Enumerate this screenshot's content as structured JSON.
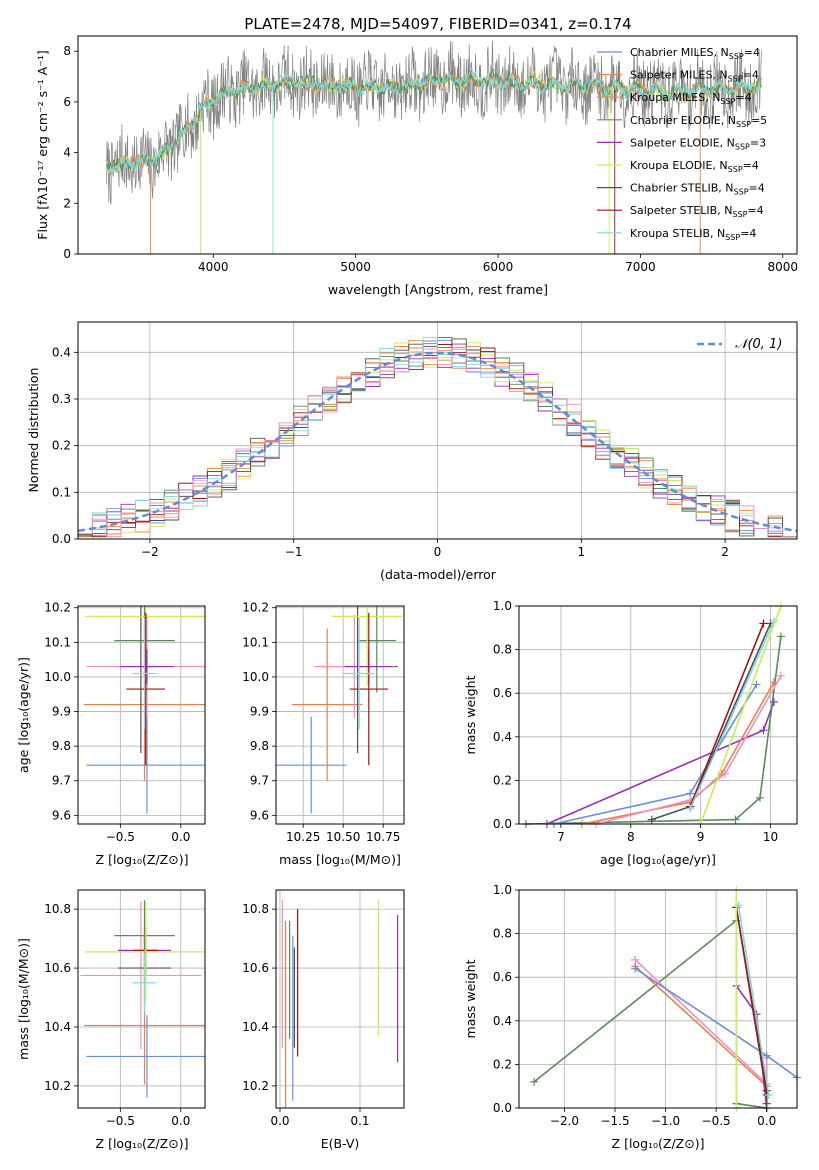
{
  "colors": {
    "Chabrier MILES": "#6a8fd8",
    "Salpeter MILES": "#e6824f",
    "Kroupa MILES": "#ef8a38",
    "Chabrier ELODIE": "#5b8a5b",
    "Salpeter ELODIE": "#9b30b4",
    "Kroupa ELODIE": "#c8ec5a",
    "Chabrier STELIB": "#505050",
    "Salpeter STELIB": "#a01414",
    "Kroupa STELIB": "#80d8e0",
    "pink": "#f090c0",
    "data": "#808080",
    "normal": "#5f8cd9"
  },
  "chart_data": [
    {
      "id": "spectrum",
      "type": "line",
      "title": "PLATE=2478, MJD=54097, FIBERID=0341, z=0.174",
      "xlabel": "wavelength [Angstrom, rest frame]",
      "ylabel": "Flux [fλ10⁻¹⁷ erg cm⁻² s⁻¹ A⁻¹]",
      "xlim": [
        3050,
        8100
      ],
      "ylim": [
        0,
        8.6
      ],
      "xticks": [
        "4000",
        "5000",
        "6000",
        "7000",
        "8000"
      ],
      "yticks": [
        "0",
        "2",
        "4",
        "6",
        "8"
      ],
      "continuum_x": [
        3250,
        3400,
        3600,
        3800,
        3950,
        4100,
        4300,
        4500,
        4700,
        5000,
        5300,
        5600,
        6000,
        6400,
        6800,
        7200,
        7500,
        7850
      ],
      "continuum_y": [
        3.4,
        3.6,
        3.7,
        4.8,
        5.9,
        6.4,
        6.6,
        6.8,
        6.7,
        6.6,
        6.6,
        6.9,
        6.8,
        6.7,
        6.6,
        6.4,
        6.5,
        6.6
      ],
      "legend": [
        {
          "label": "Chabrier MILES, N",
          "sub": "SSP",
          "tail": "=4",
          "color_key": "Chabrier MILES"
        },
        {
          "label": "Salpeter MILES, N",
          "sub": "SSP",
          "tail": "=4",
          "color_key": "Salpeter MILES"
        },
        {
          "label": "Kroupa MILES, N",
          "sub": "SSP",
          "tail": "=4",
          "color_key": "Kroupa MILES"
        },
        {
          "label": "Chabrier ELODIE, N",
          "sub": "SSP",
          "tail": "=5",
          "color_key": "Chabrier ELODIE"
        },
        {
          "label": "Salpeter ELODIE, N",
          "sub": "SSP",
          "tail": "=3",
          "color_key": "Salpeter ELODIE"
        },
        {
          "label": "Kroupa ELODIE, N",
          "sub": "SSP",
          "tail": "=4",
          "color_key": "Kroupa ELODIE"
        },
        {
          "label": "Chabrier STELIB, N",
          "sub": "SSP",
          "tail": "=4",
          "color_key": "Chabrier STELIB"
        },
        {
          "label": "Salpeter STELIB, N",
          "sub": "SSP",
          "tail": "=4",
          "color_key": "Salpeter STELIB"
        },
        {
          "label": "Kroupa STELIB, N",
          "sub": "SSP",
          "tail": "=4",
          "color_key": "Kroupa STELIB"
        }
      ]
    },
    {
      "id": "residuals",
      "type": "line",
      "xlabel": "(data-model)/error",
      "ylabel": "Normed distribution",
      "xlim": [
        -2.5,
        2.5
      ],
      "ylim": [
        0,
        0.465
      ],
      "xticks": [
        "−2",
        "−1",
        "0",
        "1",
        "2"
      ],
      "yticks": [
        "0.0",
        "0.1",
        "0.2",
        "0.3",
        "0.4"
      ],
      "legend_label": "𝒩(0, 1)",
      "bin_width": 0.1
    },
    {
      "id": "age_vs_Z",
      "type": "scatter",
      "xlabel": "Z [log₁₀(Z/Z⊙)]",
      "ylabel": "age  [log₁₀(age/yr)]",
      "xlim": [
        -0.85,
        0.2
      ],
      "ylim": [
        9.575,
        10.205
      ],
      "xticks": [
        "−0.5",
        "0.0"
      ],
      "xtick_values": [
        -0.5,
        0.0
      ],
      "yticks": [
        "9.6",
        "9.7",
        "9.8",
        "9.9",
        "10.0",
        "10.1",
        "10.2"
      ],
      "ytick_values": [
        9.6,
        9.7,
        9.8,
        9.9,
        10.0,
        10.1,
        10.2
      ],
      "points": [
        {
          "x": -0.28,
          "y": 9.745,
          "xerr": 0.5,
          "yerr": 0.14,
          "color_key": "Chabrier MILES"
        },
        {
          "x": -0.3,
          "y": 9.92,
          "xerr": 0.5,
          "yerr": 0.22,
          "color_key": "Salpeter MILES"
        },
        {
          "x": -0.33,
          "y": 10.03,
          "xerr": 0.22,
          "yerr": 0.25,
          "color_key": "Chabrier STELIB"
        },
        {
          "x": -0.28,
          "y": 10.03,
          "xerr": 0.5,
          "yerr": 0.15,
          "color_key": "pink"
        },
        {
          "x": -0.3,
          "y": 10.105,
          "xerr": 0.25,
          "yerr": 0.15,
          "color_key": "Chabrier ELODIE"
        },
        {
          "x": -0.29,
          "y": 10.175,
          "xerr": 0.5,
          "yerr": 0.2,
          "color_key": "Kroupa ELODIE"
        },
        {
          "x": -0.28,
          "y": 10.03,
          "xerr": 0.22,
          "yerr": 0.05,
          "color_key": "Salpeter ELODIE"
        },
        {
          "x": -0.29,
          "y": 9.965,
          "xerr": 0.16,
          "yerr": 0.22,
          "color_key": "Salpeter STELIB"
        },
        {
          "x": -0.3,
          "y": 10.01,
          "xerr": 0.1,
          "yerr": 0.16,
          "color_key": "Kroupa STELIB"
        }
      ]
    },
    {
      "id": "age_vs_mass",
      "type": "scatter",
      "xlabel": "mass [log₁₀(M/M⊙)]",
      "xlim": [
        10.08,
        10.88
      ],
      "ylim": [
        9.575,
        10.205
      ],
      "xticks": [
        "10.25",
        "10.50",
        "10.75"
      ],
      "xtick_values": [
        10.25,
        10.5,
        10.75
      ],
      "yticks": [
        "9.6",
        "9.7",
        "9.8",
        "9.9",
        "10.0",
        "10.1",
        "10.2"
      ],
      "ytick_values": [
        9.6,
        9.7,
        9.8,
        9.9,
        10.0,
        10.1,
        10.2
      ],
      "points": [
        {
          "x": 10.3,
          "y": 9.745,
          "xerr": 0.22,
          "yerr": 0.14,
          "color_key": "Chabrier MILES"
        },
        {
          "x": 10.4,
          "y": 9.92,
          "xerr": 0.22,
          "yerr": 0.22,
          "color_key": "Salpeter MILES"
        },
        {
          "x": 10.59,
          "y": 10.03,
          "xerr": 0.25,
          "yerr": 0.25,
          "color_key": "Chabrier STELIB"
        },
        {
          "x": 10.57,
          "y": 10.03,
          "xerr": 0.25,
          "yerr": 0.15,
          "color_key": "pink"
        },
        {
          "x": 10.71,
          "y": 10.105,
          "xerr": 0.12,
          "yerr": 0.15,
          "color_key": "Chabrier ELODIE"
        },
        {
          "x": 10.65,
          "y": 10.175,
          "xerr": 0.22,
          "yerr": 0.2,
          "color_key": "Kroupa ELODIE"
        },
        {
          "x": 10.66,
          "y": 10.03,
          "xerr": 0.15,
          "yerr": 0.05,
          "color_key": "Salpeter ELODIE"
        },
        {
          "x": 10.66,
          "y": 9.965,
          "xerr": 0.12,
          "yerr": 0.22,
          "color_key": "Salpeter STELIB"
        },
        {
          "x": 10.6,
          "y": 10.01,
          "xerr": 0.1,
          "yerr": 0.16,
          "color_key": "Kroupa STELIB"
        }
      ]
    },
    {
      "id": "mass_weight_vs_age",
      "type": "line",
      "xlabel": "age  [log₁₀(age/yr)]",
      "ylabel": "mass weight",
      "xlim": [
        6.4,
        10.38
      ],
      "ylim": [
        0,
        1
      ],
      "xticks": [
        "7",
        "8",
        "9",
        "10"
      ],
      "xtick_values": [
        7,
        8,
        9,
        10
      ],
      "yticks": [
        "0.0",
        "0.2",
        "0.4",
        "0.6",
        "0.8",
        "1.0"
      ],
      "ytick_values": [
        0,
        0.2,
        0.4,
        0.6,
        0.8,
        1.0
      ],
      "series": [
        {
          "color_key": "Salpeter ELODIE",
          "x": [
            6.8,
            9.9,
            10.05
          ],
          "y": [
            0.0,
            0.43,
            0.56
          ]
        },
        {
          "color_key": "Chabrier ELODIE",
          "x": [
            6.5,
            9.5,
            9.85,
            10.15
          ],
          "y": [
            0.0,
            0.02,
            0.12,
            0.86
          ]
        },
        {
          "color_key": "Chabrier MILES",
          "x": [
            6.9,
            8.85,
            9.8
          ],
          "y": [
            0.0,
            0.14,
            0.64
          ]
        },
        {
          "color_key": "Salpeter MILES",
          "x": [
            7.3,
            8.85,
            9.3,
            10.05
          ],
          "y": [
            0.0,
            0.1,
            0.23,
            0.65
          ]
        },
        {
          "color_key": "pink",
          "x": [
            7.5,
            8.85,
            9.35,
            10.15
          ],
          "y": [
            0.0,
            0.11,
            0.23,
            0.68
          ]
        },
        {
          "color_key": "Chabrier STELIB",
          "x": [
            8.3,
            8.85,
            10.0
          ],
          "y": [
            0.02,
            0.08,
            0.92
          ]
        },
        {
          "color_key": "Salpeter STELIB",
          "x": [
            8.85,
            9.9
          ],
          "y": [
            0.08,
            0.92
          ]
        },
        {
          "color_key": "Kroupa STELIB",
          "x": [
            8.85,
            10.05
          ],
          "y": [
            0.07,
            0.93
          ]
        },
        {
          "color_key": "Kroupa ELODIE",
          "x": [
            9.0,
            10.15
          ],
          "y": [
            0.0,
            1.0
          ]
        }
      ]
    },
    {
      "id": "mass_vs_Z",
      "type": "scatter",
      "xlabel": "Z [log₁₀(Z/Z⊙)]",
      "ylabel": "mass [log₁₀(M/M⊙)]",
      "xlim": [
        -0.85,
        0.2
      ],
      "ylim": [
        10.125,
        10.865
      ],
      "xticks": [
        "−0.5",
        "0.0"
      ],
      "xtick_values": [
        -0.5,
        0.0
      ],
      "yticks": [
        "10.2",
        "10.4",
        "10.6",
        "10.8"
      ],
      "ytick_values": [
        10.2,
        10.4,
        10.6,
        10.8
      ],
      "points": [
        {
          "x": -0.28,
          "y": 10.3,
          "xerr": 0.5,
          "yerr": 0.14,
          "color_key": "Chabrier MILES"
        },
        {
          "x": -0.3,
          "y": 10.405,
          "xerr": 0.5,
          "yerr": 0.2,
          "color_key": "Salpeter MILES"
        },
        {
          "x": -0.33,
          "y": 10.575,
          "xerr": 0.5,
          "yerr": 0.25,
          "color_key": "pink"
        },
        {
          "x": -0.3,
          "y": 10.6,
          "xerr": 0.22,
          "yerr": 0.12,
          "color_key": "Chabrier STELIB"
        },
        {
          "x": -0.3,
          "y": 10.66,
          "xerr": 0.22,
          "yerr": 0.08,
          "color_key": "Salpeter ELODIE"
        },
        {
          "x": -0.29,
          "y": 10.66,
          "xerr": 0.1,
          "yerr": 0.08,
          "color_key": "Salpeter STELIB"
        },
        {
          "x": -0.3,
          "y": 10.71,
          "xerr": 0.25,
          "yerr": 0.12,
          "color_key": "Chabrier ELODIE"
        },
        {
          "x": -0.29,
          "y": 10.655,
          "xerr": 0.5,
          "yerr": 0.17,
          "color_key": "Kroupa ELODIE"
        },
        {
          "x": -0.3,
          "y": 10.55,
          "xerr": 0.1,
          "yerr": 0.1,
          "color_key": "Kroupa STELIB"
        }
      ]
    },
    {
      "id": "mass_vs_EBV",
      "type": "scatter",
      "xlabel": "E(B-V)",
      "xlim": [
        -0.005,
        0.155
      ],
      "ylim": [
        10.125,
        10.865
      ],
      "xticks": [
        "0.0",
        "0.1"
      ],
      "xtick_values": [
        0.0,
        0.1
      ],
      "yticks": [
        "10.2",
        "10.4",
        "10.6",
        "10.8"
      ],
      "ytick_values": [
        10.2,
        10.4,
        10.6,
        10.8
      ],
      "points": [
        {
          "x": 0.003,
          "y": 10.58,
          "yerr": 0.25,
          "color_key": "pink"
        },
        {
          "x": 0.007,
          "y": 10.42,
          "yerr": 0.34,
          "color_key": "Salpeter MILES"
        },
        {
          "x": 0.012,
          "y": 10.56,
          "yerr": 0.2,
          "color_key": "Chabrier ELODIE"
        },
        {
          "x": 0.016,
          "y": 10.43,
          "yerr": 0.28,
          "color_key": "Chabrier MILES"
        },
        {
          "x": 0.018,
          "y": 10.5,
          "yerr": 0.17,
          "color_key": "Chabrier STELIB"
        },
        {
          "x": 0.022,
          "y": 10.55,
          "yerr": 0.25,
          "color_key": "Salpeter STELIB"
        },
        {
          "x": 0.123,
          "y": 10.6,
          "yerr": 0.23,
          "color_key": "Kroupa ELODIE"
        },
        {
          "x": 0.147,
          "y": 10.53,
          "yerr": 0.25,
          "color_key": "Salpeter ELODIE"
        }
      ]
    },
    {
      "id": "mass_weight_vs_Z",
      "type": "line",
      "xlabel": "Z [log₁₀(Z/Z⊙)]",
      "ylabel": "mass weight",
      "xlim": [
        -2.45,
        0.3
      ],
      "ylim": [
        0,
        1
      ],
      "xticks": [
        "−2.0",
        "−1.5",
        "−1.0",
        "−0.5",
        "0.0"
      ],
      "xtick_values": [
        -2.0,
        -1.5,
        -1.0,
        -0.5,
        0.0
      ],
      "yticks": [
        "0.0",
        "0.2",
        "0.4",
        "0.6",
        "0.8",
        "1.0"
      ],
      "ytick_values": [
        0,
        0.2,
        0.4,
        0.6,
        0.8,
        1.0
      ],
      "series": [
        {
          "color_key": "Chabrier ELODIE",
          "x": [
            -2.3,
            -0.3,
            -0.3,
            0.0
          ],
          "y": [
            0.12,
            0.86,
            0.02,
            0.0
          ]
        },
        {
          "color_key": "Salpeter MILES",
          "x": [
            -1.3,
            0.0,
            0.0
          ],
          "y": [
            0.65,
            0.1,
            0.23
          ]
        },
        {
          "color_key": "pink",
          "x": [
            -1.3,
            0.0,
            0.0
          ],
          "y": [
            0.68,
            0.11,
            0.23
          ]
        },
        {
          "color_key": "Chabrier MILES",
          "x": [
            -1.3,
            0.0,
            0.3
          ],
          "y": [
            0.64,
            0.24,
            0.14
          ]
        },
        {
          "color_key": "Salpeter ELODIE",
          "x": [
            -0.3,
            -0.1,
            0.0
          ],
          "y": [
            0.56,
            0.43,
            0.0
          ]
        },
        {
          "color_key": "Chabrier STELIB",
          "x": [
            -0.3,
            0.0,
            0.0
          ],
          "y": [
            0.92,
            0.06,
            0.02
          ]
        },
        {
          "color_key": "Salpeter STELIB",
          "x": [
            -0.3,
            0.0
          ],
          "y": [
            0.92,
            0.08
          ]
        },
        {
          "color_key": "Kroupa STELIB",
          "x": [
            -0.28,
            0.02
          ],
          "y": [
            0.93,
            0.06
          ]
        },
        {
          "color_key": "Kroupa ELODIE",
          "x": [
            -0.3,
            -0.3
          ],
          "y": [
            1.0,
            0.0
          ]
        }
      ]
    }
  ]
}
